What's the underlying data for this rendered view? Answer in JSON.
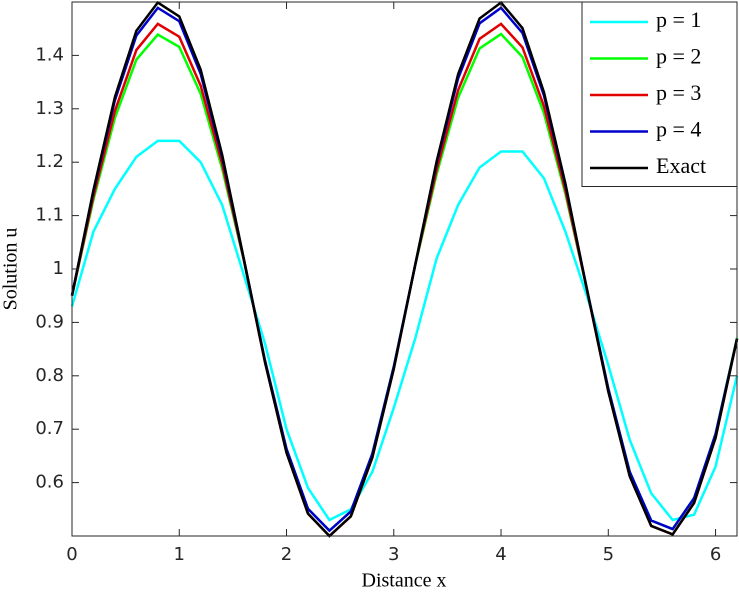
{
  "chart_data": {
    "type": "line",
    "x_label": "Distance x",
    "y_label": "Solution u",
    "x": [
      0,
      0.2,
      0.4,
      0.6,
      0.8,
      1.0,
      1.2,
      1.4,
      1.6,
      1.8,
      2.0,
      2.2,
      2.4,
      2.6,
      2.8,
      3.0,
      3.2,
      3.4,
      3.6,
      3.8,
      4.0,
      4.2,
      4.4,
      4.6,
      4.8,
      5.0,
      5.2,
      5.4,
      5.6,
      5.8,
      6.0,
      6.2
    ],
    "series": [
      {
        "name": "p = 1",
        "color": "#00ffff",
        "values": [
          0.93,
          1.07,
          1.15,
          1.21,
          1.24,
          1.24,
          1.2,
          1.12,
          0.99,
          0.86,
          0.7,
          0.59,
          0.53,
          0.55,
          0.62,
          0.74,
          0.87,
          1.02,
          1.12,
          1.19,
          1.22,
          1.22,
          1.17,
          1.07,
          0.95,
          0.82,
          0.68,
          0.58,
          0.53,
          0.54,
          0.63,
          0.8
        ]
      },
      {
        "name": "p = 2",
        "color": "#00ff00",
        "values": [
          0.951,
          1.13,
          1.283,
          1.392,
          1.439,
          1.416,
          1.328,
          1.188,
          1.018,
          0.828,
          0.663,
          0.551,
          0.51,
          0.546,
          0.654,
          0.817,
          1.007,
          1.178,
          1.321,
          1.413,
          1.44,
          1.397,
          1.292,
          1.141,
          0.963,
          0.776,
          0.62,
          0.529,
          0.513,
          0.571,
          0.691,
          0.871
        ]
      },
      {
        "name": "p = 3",
        "color": "#e00000",
        "values": [
          0.95,
          1.136,
          1.296,
          1.41,
          1.459,
          1.435,
          1.343,
          1.197,
          1.019,
          0.825,
          0.656,
          0.542,
          0.5,
          0.537,
          0.647,
          0.813,
          1.008,
          1.186,
          1.335,
          1.431,
          1.459,
          1.415,
          1.305,
          1.147,
          0.962,
          0.771,
          0.612,
          0.519,
          0.503,
          0.562,
          0.684,
          0.869
        ]
      },
      {
        "name": "p = 4",
        "color": "#0000cc",
        "values": [
          0.951,
          1.145,
          1.316,
          1.437,
          1.489,
          1.464,
          1.365,
          1.209,
          1.02,
          0.828,
          0.663,
          0.551,
          0.51,
          0.546,
          0.654,
          0.817,
          1.008,
          1.198,
          1.357,
          1.46,
          1.489,
          1.442,
          1.325,
          1.157,
          0.963,
          0.776,
          0.62,
          0.529,
          0.513,
          0.571,
          0.691,
          0.869
        ]
      },
      {
        "name": "Exact",
        "color": "#000000",
        "values": [
          0.95,
          1.148,
          1.322,
          1.446,
          1.499,
          1.473,
          1.373,
          1.214,
          1.021,
          0.825,
          0.656,
          0.542,
          0.5,
          0.537,
          0.647,
          0.813,
          1.008,
          1.202,
          1.365,
          1.469,
          1.499,
          1.451,
          1.331,
          1.16,
          0.962,
          0.771,
          0.612,
          0.519,
          0.503,
          0.562,
          0.684,
          0.869
        ]
      }
    ],
    "xlim": [
      0,
      6.2
    ],
    "ylim": [
      0.5,
      1.5
    ],
    "xticks": [
      0,
      1,
      2,
      3,
      4,
      5,
      6
    ],
    "yticks": [
      0.6,
      0.7,
      0.8,
      0.9,
      1,
      1.1,
      1.2,
      1.3,
      1.4
    ],
    "legend": "upper right",
    "grid": false
  }
}
